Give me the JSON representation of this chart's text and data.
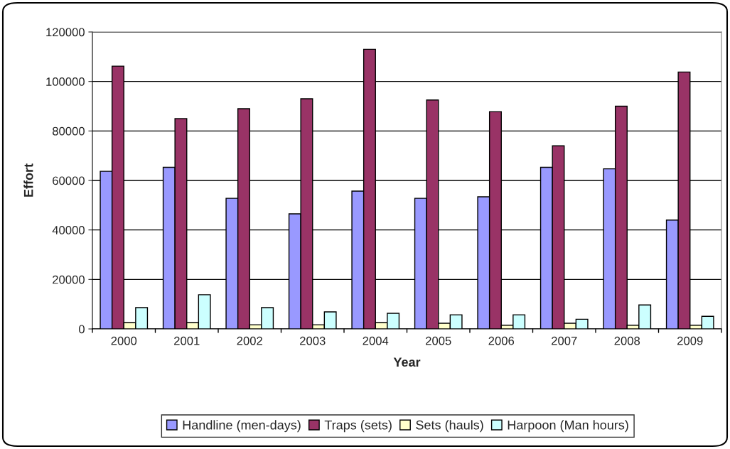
{
  "chart_data": {
    "type": "bar",
    "xlabel": "Year",
    "ylabel": "Effort",
    "categories": [
      "2000",
      "2001",
      "2002",
      "2003",
      "2004",
      "2005",
      "2006",
      "2007",
      "2008",
      "2009"
    ],
    "series": [
      {
        "name": "Handline (men-days)",
        "color": "#9999ff",
        "values": [
          63700,
          65300,
          52800,
          46500,
          55700,
          52800,
          53400,
          65300,
          64700,
          44000
        ]
      },
      {
        "name": "Traps (sets)",
        "color": "#993366",
        "values": [
          106200,
          85000,
          89000,
          93000,
          113000,
          92500,
          87800,
          74000,
          90000,
          103800
        ]
      },
      {
        "name": "Sets (hauls)",
        "color": "#ffffcc",
        "values": [
          2600,
          2600,
          1700,
          1700,
          2600,
          2300,
          1500,
          2300,
          1500,
          1500
        ]
      },
      {
        "name": "Harpoon (Man hours)",
        "color": "#ccffff",
        "values": [
          8600,
          13800,
          8600,
          6900,
          6300,
          5700,
          5700,
          3900,
          9700,
          5100
        ]
      }
    ],
    "ylim": [
      0,
      120000
    ],
    "yticks": [
      0,
      20000,
      40000,
      60000,
      80000,
      100000,
      120000
    ],
    "grid": "y",
    "legend": "bottom"
  }
}
